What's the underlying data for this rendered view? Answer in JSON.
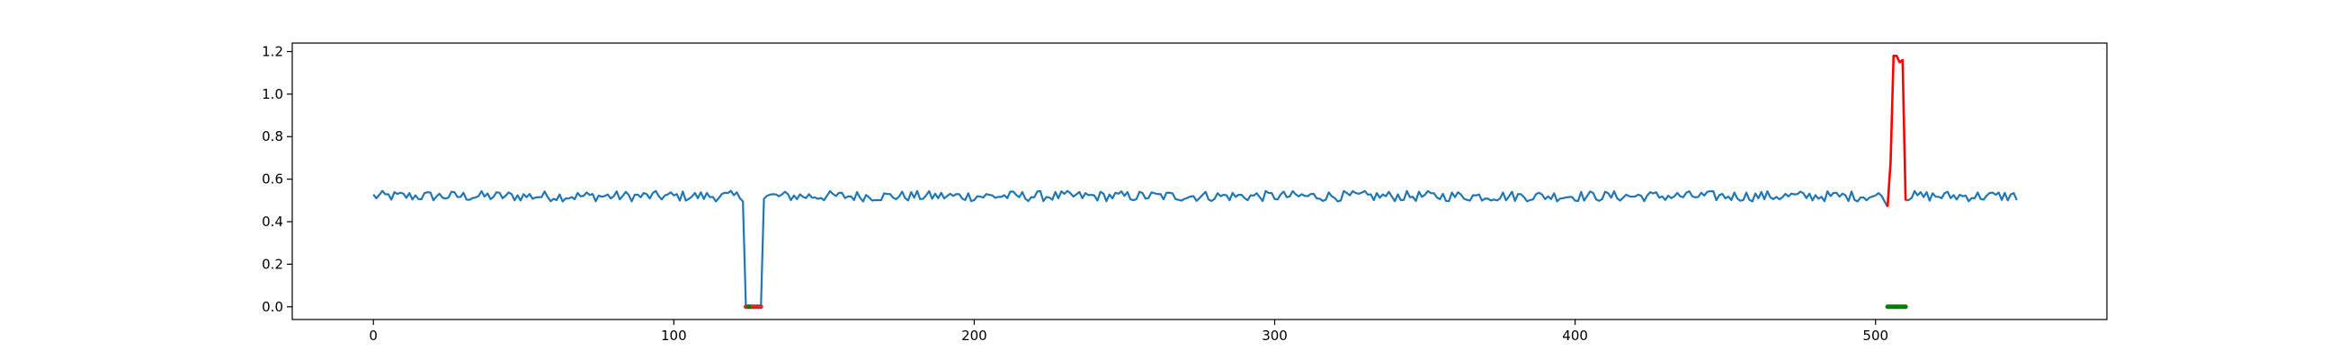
{
  "chart_data": {
    "type": "line",
    "title": "",
    "xlabel": "",
    "ylabel": "",
    "xlim": [
      -27,
      577
    ],
    "ylim": [
      -0.06,
      1.24
    ],
    "x_ticks": [
      0,
      100,
      200,
      300,
      400,
      500
    ],
    "y_ticks": [
      0.0,
      0.2,
      0.4,
      0.6,
      0.8,
      1.0,
      1.2
    ],
    "x_tick_labels": [
      "0",
      "100",
      "200",
      "300",
      "400",
      "500"
    ],
    "y_tick_labels": [
      "0.0",
      "0.2",
      "0.4",
      "0.6",
      "0.8",
      "1.0",
      "1.2"
    ],
    "grid": false,
    "colors": {
      "signal": "#1f77b4",
      "anomaly": "#ff0000",
      "marker_a": "#d62728",
      "marker_b": "#008000"
    },
    "signal": {
      "n_points": 548,
      "baseline": 0.52,
      "noise_amplitude": 0.025,
      "drops": [
        {
          "x_start": 124,
          "x_end": 129,
          "value": 0.0
        }
      ]
    },
    "anomaly_segment": {
      "x": [
        504,
        505,
        506,
        507,
        508,
        509,
        510
      ],
      "y": [
        0.47,
        0.68,
        1.18,
        1.18,
        1.15,
        1.16,
        0.5
      ]
    },
    "markers": [
      {
        "x_start": 124,
        "x_end": 129,
        "y": 0.0,
        "color": "#d62728"
      },
      {
        "x_start": 504,
        "x_end": 510,
        "y": 0.0,
        "color": "#008000"
      }
    ]
  }
}
